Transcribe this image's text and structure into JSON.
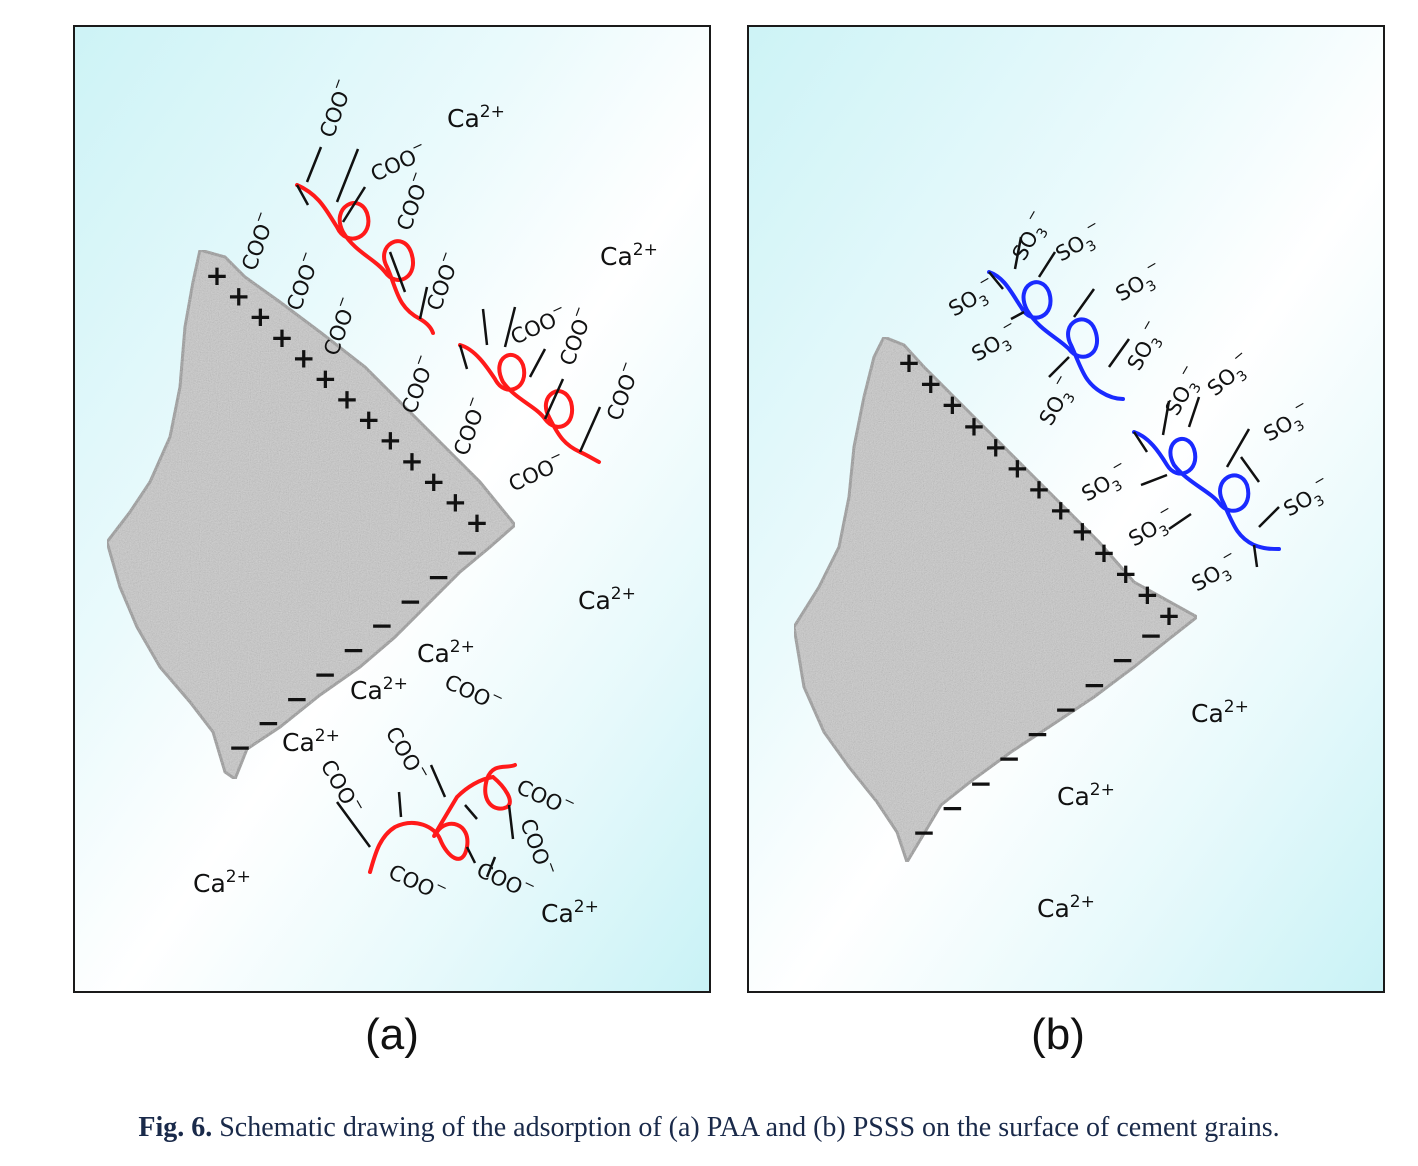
{
  "panel_a": {
    "label": "(a)",
    "sign_plus": "+",
    "sign_minus": "−",
    "group_coo": "COO",
    "charge_minus": "−",
    "ion": "Ca",
    "ion_charge": "2+",
    "polymer_color": "#ff1a1a"
  },
  "panel_b": {
    "label": "(b)",
    "sign_plus": "+",
    "sign_minus": "−",
    "group_so3": "SO",
    "subscript_3": "3",
    "charge_minus": "−",
    "ion": "Ca",
    "ion_charge": "2+",
    "polymer_color": "#1a2aff"
  },
  "caption": {
    "figure_number": "Fig. 6.",
    "text": " Schematic drawing of the adsorption of (a) PAA and (b) PSSS on the surface of cement grains."
  },
  "colors": {
    "background_gradient": "#cdf3f6",
    "grain": "#c8c8c8",
    "caption_text": "#1a2a4a"
  }
}
